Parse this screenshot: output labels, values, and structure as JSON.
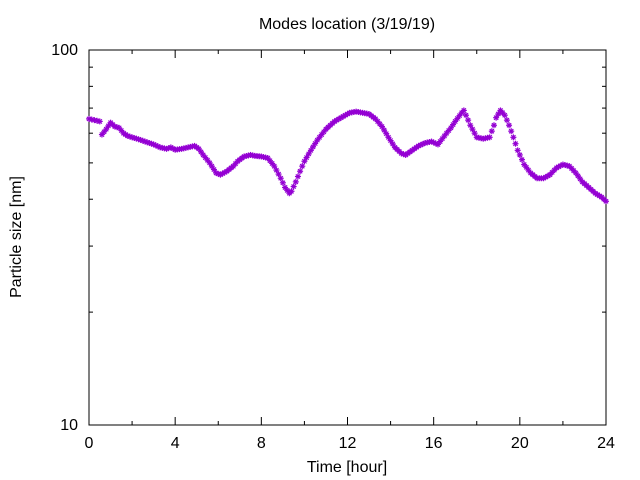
{
  "chart_data": {
    "type": "scatter",
    "title": "Modes location (3/19/19)",
    "xlabel": "Time [hour]",
    "ylabel": "Particle size [nm]",
    "xlim": [
      0,
      24
    ],
    "ylim": [
      10,
      100
    ],
    "yscale": "log",
    "xticks": [
      0,
      4,
      8,
      12,
      16,
      20,
      24
    ],
    "yticks": [
      10,
      100
    ],
    "marker": "star",
    "color": "#9400d3",
    "grid": false,
    "series": [
      {
        "x": [
          0.0,
          0.25,
          0.5,
          0.6,
          0.8,
          1.0,
          1.2,
          1.4,
          1.6,
          1.8,
          2.0,
          2.3,
          2.6,
          3.0,
          3.3,
          3.6,
          3.8,
          4.0,
          4.3,
          4.6,
          4.9,
          5.1,
          5.3,
          5.6,
          5.9,
          6.1,
          6.4,
          6.7,
          6.9,
          7.2,
          7.5,
          7.7,
          8.0,
          8.3,
          8.6,
          8.9,
          9.1,
          9.3,
          9.4,
          9.6,
          9.8,
          10.0,
          10.3,
          10.6,
          11.0,
          11.4,
          11.8,
          12.1,
          12.4,
          12.7,
          13.0,
          13.3,
          13.6,
          13.9,
          14.2,
          14.5,
          14.7,
          15.0,
          15.3,
          15.6,
          15.9,
          16.2,
          16.5,
          16.8,
          17.0,
          17.3,
          17.4,
          17.7,
          18.0,
          18.3,
          18.6,
          18.8,
          18.9,
          19.1,
          19.3,
          19.5,
          19.7,
          19.9,
          20.2,
          20.5,
          20.8,
          21.1,
          21.4,
          21.7,
          22.0,
          22.3,
          22.6,
          22.9,
          23.2,
          23.5,
          23.8,
          24.0
        ],
        "y": [
          65.5,
          65.0,
          64.5,
          59.5,
          61.5,
          64.0,
          62.5,
          62.0,
          60.0,
          59.0,
          58.5,
          57.8,
          57.0,
          56.0,
          55.0,
          54.5,
          55.0,
          54.2,
          54.5,
          55.0,
          55.5,
          54.5,
          52.5,
          50.0,
          47.0,
          46.5,
          47.5,
          49.0,
          50.5,
          52.0,
          52.5,
          52.2,
          52.0,
          51.5,
          49.0,
          45.5,
          43.0,
          41.5,
          42.0,
          44.5,
          47.5,
          50.5,
          54.0,
          57.5,
          61.5,
          64.5,
          66.5,
          68.0,
          68.5,
          68.0,
          67.5,
          65.5,
          62.5,
          58.5,
          55.0,
          53.0,
          52.5,
          54.0,
          55.5,
          56.5,
          57.0,
          56.0,
          59.0,
          62.0,
          64.5,
          68.0,
          69.0,
          63.0,
          58.5,
          58.0,
          58.5,
          63.0,
          66.0,
          69.0,
          67.0,
          63.0,
          58.5,
          54.0,
          49.5,
          47.0,
          45.5,
          45.5,
          46.5,
          48.5,
          49.5,
          49.0,
          47.0,
          44.5,
          43.0,
          41.5,
          40.5,
          39.5
        ]
      }
    ]
  }
}
